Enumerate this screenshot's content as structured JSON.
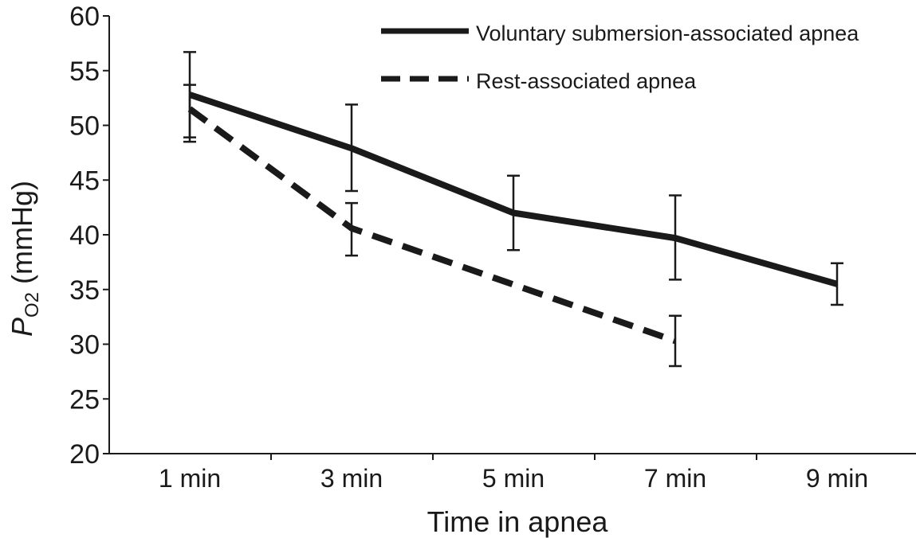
{
  "chart_data": {
    "type": "line",
    "title": "",
    "xlabel": "Time in apnea",
    "ylabel": {
      "prefix": "P",
      "subscript": "O2",
      "suffix": " (mmHg)"
    },
    "categories": [
      "1 min",
      "3 min",
      "5 min",
      "7 min",
      "9 min"
    ],
    "ylim": [
      20,
      60
    ],
    "yticks": [
      20,
      25,
      30,
      35,
      40,
      45,
      50,
      55,
      60
    ],
    "grid": false,
    "legend_position": "top-right",
    "series": [
      {
        "name": "Voluntary submersion-associated apnea",
        "style": "solid",
        "color": "#1a1a1a",
        "values": [
          52.8,
          47.9,
          42.0,
          39.7,
          35.5
        ],
        "error_low": [
          48.9,
          44.0,
          38.6,
          35.9,
          33.6
        ],
        "error_high": [
          56.7,
          51.9,
          45.4,
          43.6,
          37.4
        ]
      },
      {
        "name": "Rest-associated apnea",
        "style": "dashed",
        "color": "#1a1a1a",
        "values": [
          51.5,
          40.6,
          null,
          30.3,
          null
        ],
        "error_low": [
          48.5,
          38.1,
          null,
          28.0,
          null
        ],
        "error_high": [
          53.7,
          42.9,
          null,
          32.6,
          null
        ]
      }
    ]
  }
}
